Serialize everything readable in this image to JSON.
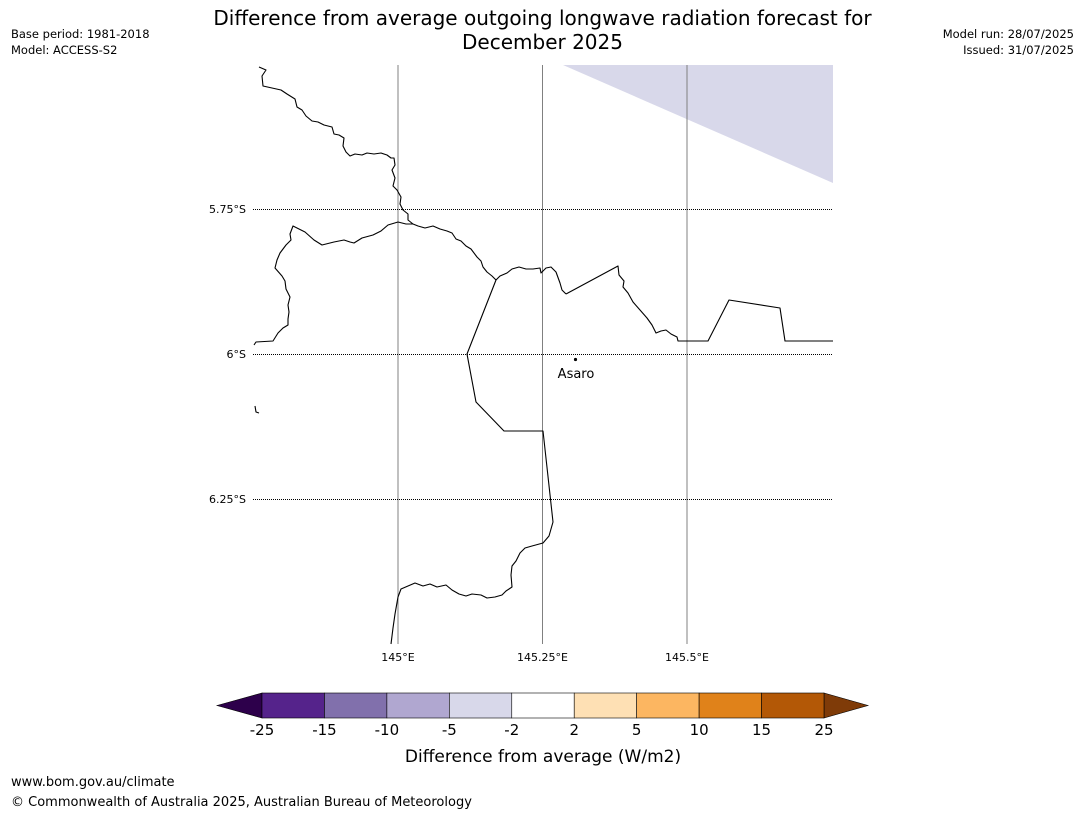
{
  "header": {
    "title_line1": "Difference from average outgoing longwave radiation forecast for",
    "title_line2": "December 2025",
    "base_period": "Base period: 1981-2018",
    "model": "Model: ACCESS-S2",
    "model_run": "Model run: 28/07/2025",
    "issued": "Issued: 31/07/2025"
  },
  "map": {
    "latitude_labels": [
      "5.75°S",
      "6°S",
      "6.25°S"
    ],
    "longitude_labels": [
      "145°E",
      "145.25°E",
      "145.5°E"
    ],
    "place": {
      "name": "Asaro"
    },
    "anomaly_region_color": "#d8d8ea",
    "coastline_color": "#000000",
    "gridline_color": "#808080"
  },
  "colorbar": {
    "label": "Difference from average (W/m2)",
    "tick_labels": [
      "-25",
      "-15",
      "-10",
      "-5",
      "-2",
      "2",
      "5",
      "10",
      "15",
      "25"
    ],
    "colors": [
      "#55238b",
      "#8170ac",
      "#b0a7d0",
      "#d8d8ea",
      "#ffffff",
      "#fee0b4",
      "#fcb661",
      "#e0821a",
      "#b35806"
    ],
    "under_color": "#2d004b",
    "over_color": "#7f3b08"
  },
  "footer": {
    "url": "www.bom.gov.au/climate",
    "copyright": "© Commonwealth of Australia 2025, Australian Bureau of Meteorology"
  }
}
